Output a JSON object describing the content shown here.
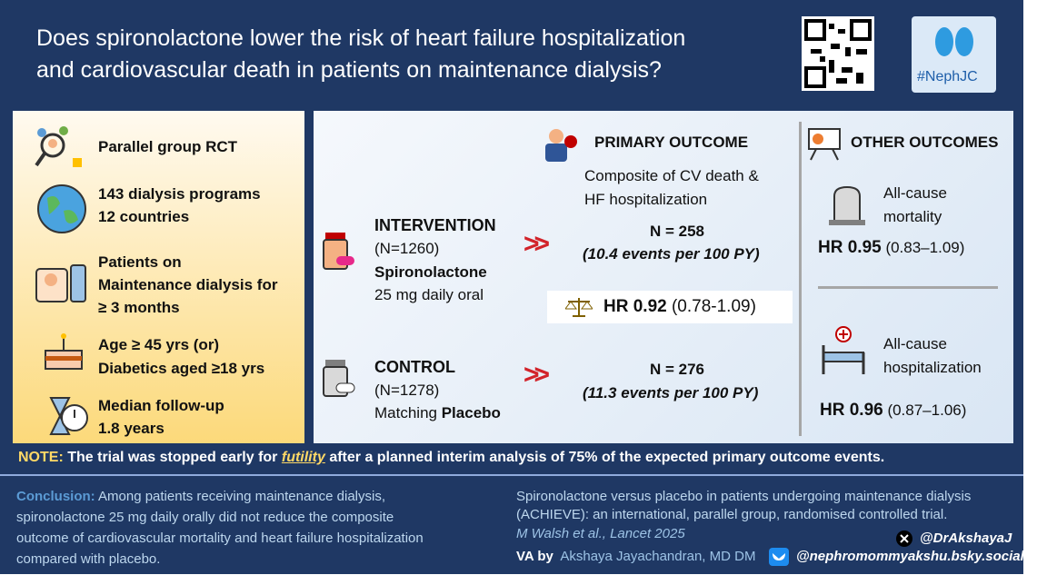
{
  "header": {
    "title_lines": [
      "Does spironolactone lower the risk of heart failure hospitalization",
      "and cardiovascular death in patients on maintenance dialysis?"
    ],
    "hashtag": "#NephJC"
  },
  "design": {
    "items": [
      {
        "lines": [
          "Parallel group RCT"
        ]
      },
      {
        "lines": [
          "143 dialysis programs",
          "12 countries"
        ]
      },
      {
        "lines": [
          "Patients on",
          "Maintenance dialysis for",
          "≥ 3 months"
        ]
      },
      {
        "lines": [
          "Age ≥ 45 yrs (or)",
          "Diabetics aged ≥18 yrs"
        ]
      },
      {
        "lines": [
          "Median follow-up",
          "1.8 years"
        ]
      }
    ]
  },
  "arms": {
    "intervention": {
      "label": "INTERVENTION",
      "n": "(N=1260)",
      "drug": "Spironolactone",
      "dose": "25 mg daily oral"
    },
    "control": {
      "label": "CONTROL",
      "n": "(N=1278)",
      "drug_prefix": "Matching",
      "drug": "Placebo"
    }
  },
  "primary_outcome": {
    "heading": "PRIMARY OUTCOME",
    "description_lines": [
      "Composite of  CV death &",
      "HF hospitalization"
    ],
    "intervention_n": "N = 258",
    "intervention_rate": "(10.4 events per 100 PY)",
    "control_n": "N = 276",
    "control_rate": "(11.3 events per 100 PY)",
    "hr": "HR 0.92",
    "ci": "(0.78-1.09)"
  },
  "other_outcomes": {
    "heading": "OTHER OUTCOMES",
    "mortality": {
      "lines": [
        "All-cause",
        "mortality"
      ],
      "hr": "HR 0.95",
      "ci": "(0.83–1.09)"
    },
    "hospitalization": {
      "lines": [
        "All-cause",
        "hospitalization"
      ],
      "hr": "HR 0.96",
      "ci": "(0.87–1.06)"
    }
  },
  "note": {
    "label": "NOTE:",
    "text_before": "The trial was stopped early for",
    "emphasis": "futility",
    "text_after": "after a planned interim analysis of 75% of the expected primary outcome events."
  },
  "footer": {
    "conclusion_label": "Conclusion:",
    "conclusion_lines": [
      "Among patients receiving maintenance dialysis,",
      "spironolactone 25 mg daily orally did not reduce the composite",
      "outcome of cardiovascular mortality and heart failure hospitalization",
      "compared with placebo."
    ],
    "reference_lines": [
      "Spironolactone versus placebo in patients undergoing maintenance dialysis",
      "(ACHIEVE): an international, parallel group, randomised controlled trial."
    ],
    "citation": "M Walsh et al., Lancet 2025",
    "va_label": "VA by",
    "author": "Akshaya Jayachandran, MD DM",
    "x_handle": "@DrAkshayaJ",
    "bluesky_handle": "@nephromommyakshu.bsky.social"
  }
}
